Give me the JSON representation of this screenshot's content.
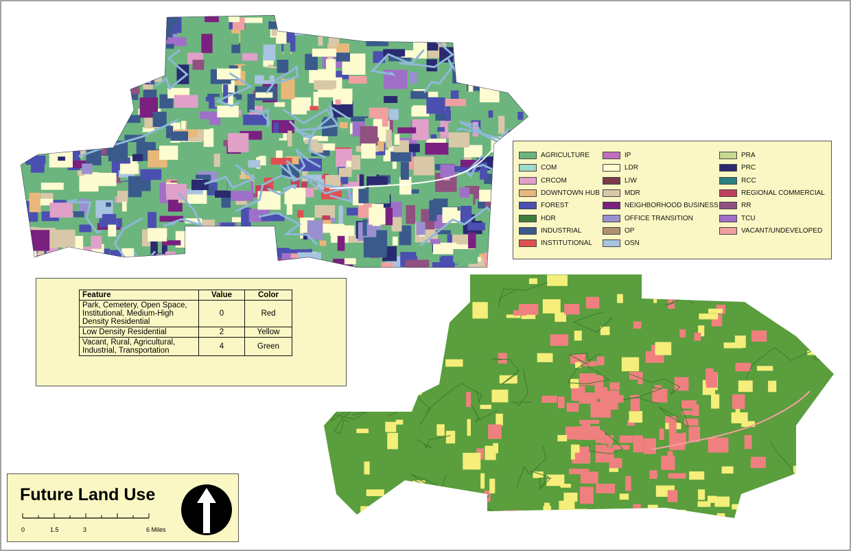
{
  "legend": {
    "items": [
      {
        "name": "AGRICULTURE",
        "color": "#6db57f"
      },
      {
        "name": "COM",
        "color": "#9fd9c9"
      },
      {
        "name": "CRCOM",
        "color": "#e0a0c8"
      },
      {
        "name": "DOWNTOWN HUB",
        "color": "#e8b87a"
      },
      {
        "name": "FOREST",
        "color": "#4a4fb0"
      },
      {
        "name": "HDR",
        "color": "#3f7d3d"
      },
      {
        "name": "INDUSTRIAL",
        "color": "#3a5a8c"
      },
      {
        "name": "INSTITUTIONAL",
        "color": "#e05050"
      },
      {
        "name": "IP",
        "color": "#c070c0"
      },
      {
        "name": "LDR",
        "color": "#fdfbd0"
      },
      {
        "name": "LIW",
        "color": "#7a3a4a"
      },
      {
        "name": "MDR",
        "color": "#d8c8a8"
      },
      {
        "name": "NEIGHBORHOOD BUSINESS",
        "color": "#7a2080"
      },
      {
        "name": "OFFICE TRANSITION",
        "color": "#9a90d0"
      },
      {
        "name": "OP",
        "color": "#b09070"
      },
      {
        "name": "OSN",
        "color": "#a8c4e0"
      },
      {
        "name": "PRA",
        "color": "#c8d890"
      },
      {
        "name": "PRC",
        "color": "#2a2a70"
      },
      {
        "name": "RCC",
        "color": "#2a8080"
      },
      {
        "name": "REGIONAL COMMERCIAL",
        "color": "#c04060"
      },
      {
        "name": "RR",
        "color": "#905080"
      },
      {
        "name": "TCU",
        "color": "#a070c8"
      },
      {
        "name": "VACANT/UNDEVELOPED",
        "color": "#f0a0a0"
      }
    ]
  },
  "table": {
    "header": [
      "Feature",
      "Value",
      "Color"
    ],
    "rows": [
      [
        "Park, Cemetery, Open Space, Institutional, Medium-High Density Residential",
        0,
        "Red"
      ],
      [
        "Low Density Residential",
        2,
        "Yellow"
      ],
      [
        "Vacant, Rural, Agricultural, Industrial, Transportation",
        4,
        "Green"
      ]
    ]
  },
  "title": "Future Land Use",
  "scale": {
    "labels": [
      "0",
      "1.5",
      "3",
      "6 Miles"
    ]
  }
}
